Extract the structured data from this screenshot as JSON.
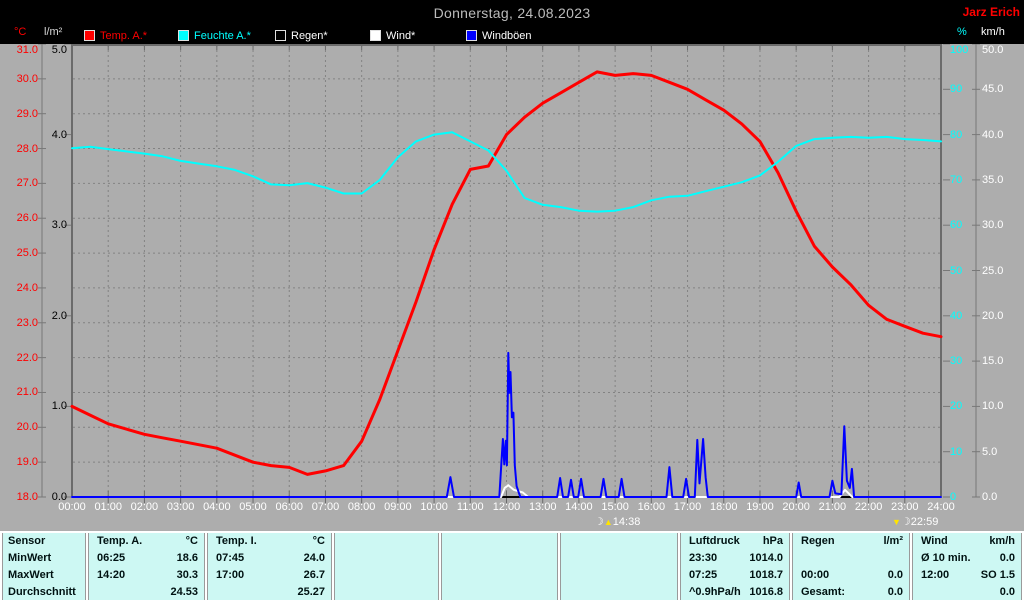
{
  "header": {
    "title": "Donnerstag, 24.08.2023",
    "station": "Jarz Erich"
  },
  "legend": [
    {
      "label": "Temp. A.*",
      "swatch": "#ff0000",
      "text_color": "#ff0000"
    },
    {
      "label": "Feuchte A.*",
      "swatch": "#00ffff",
      "text_color": "#00ffff"
    },
    {
      "label": "Regen*",
      "swatch": "#000000",
      "text_color": "#ffffff"
    },
    {
      "label": "Wind*",
      "swatch": "#ffffff",
      "text_color": "#ffffff"
    },
    {
      "label": "Windböen",
      "swatch": "#0000ff",
      "text_color": "#ffffff"
    }
  ],
  "markers": [
    {
      "time": "14:38",
      "hour": 14.63,
      "icon": "moonrise",
      "arrow": "up"
    },
    {
      "time": "22:59",
      "hour": 22.98,
      "icon": "moonset",
      "arrow": "down"
    }
  ],
  "chart_data": {
    "type": "line",
    "title": "Donnerstag, 24.08.2023",
    "x_hours_step": 0.5,
    "x_tick_labels": [
      "00:00",
      "01:00",
      "02:00",
      "03:00",
      "04:00",
      "05:00",
      "06:00",
      "07:00",
      "08:00",
      "09:00",
      "10:00",
      "11:00",
      "12:00",
      "13:00",
      "14:00",
      "15:00",
      "16:00",
      "17:00",
      "18:00",
      "19:00",
      "20:00",
      "21:00",
      "22:00",
      "23:00",
      "24:00"
    ],
    "axes": {
      "temp": {
        "unit": "°C",
        "color": "#ff0000",
        "min": 18,
        "max": 31,
        "ticks": [
          "31.0",
          "30.0",
          "29.0",
          "28.0",
          "27.0",
          "26.0",
          "25.0",
          "24.0",
          "23.0",
          "22.0",
          "21.0",
          "20.0",
          "19.0",
          "18.0"
        ],
        "unit_color": "#ff0000"
      },
      "rain": {
        "unit": "l/m²",
        "color": "#000000",
        "min": 0,
        "max": 5,
        "ticks": [
          "5.0",
          "4.0",
          "3.0",
          "2.0",
          "1.0",
          "0.0"
        ],
        "unit_color": "#d8d8d8"
      },
      "hum": {
        "unit": "%",
        "color": "#00ffff",
        "min": 0,
        "max": 100,
        "ticks": [
          "100",
          "90",
          "80",
          "70",
          "60",
          "50",
          "40",
          "30",
          "20",
          "10",
          "0"
        ],
        "unit_color": "#00ffff"
      },
      "wind": {
        "unit": "km/h",
        "color": "#ffffff",
        "min": 0,
        "max": 50,
        "ticks": [
          "50.0",
          "45.0",
          "40.0",
          "35.0",
          "30.0",
          "25.0",
          "20.0",
          "15.0",
          "10.0",
          "5.0",
          "0.0"
        ],
        "unit_color": "#ffffff"
      }
    },
    "series": [
      {
        "name": "Temp. A.",
        "axis": "temp",
        "color": "#ff0000",
        "width": 3,
        "values": [
          20.6,
          20.35,
          20.1,
          19.95,
          19.8,
          19.7,
          19.6,
          19.5,
          19.4,
          19.2,
          19.0,
          18.9,
          18.85,
          18.65,
          18.75,
          18.9,
          19.6,
          20.8,
          22.2,
          23.6,
          25.1,
          26.4,
          27.4,
          27.5,
          28.4,
          28.9,
          29.3,
          29.6,
          29.9,
          30.2,
          30.1,
          30.15,
          30.1,
          29.9,
          29.7,
          29.4,
          29.1,
          28.7,
          28.2,
          27.3,
          26.2,
          25.2,
          24.6,
          24.1,
          23.5,
          23.1,
          22.9,
          22.7,
          22.6
        ]
      },
      {
        "name": "Feuchte A.",
        "axis": "hum",
        "color": "#00ffff",
        "width": 2,
        "values": [
          77,
          77.3,
          76.8,
          76.3,
          75.8,
          75.2,
          74.2,
          73.6,
          73,
          72.2,
          70.8,
          69,
          68.8,
          69.3,
          68.3,
          67,
          67,
          70,
          75,
          78.5,
          80,
          80.5,
          78.5,
          76.5,
          72,
          66,
          64.5,
          64,
          63.2,
          63,
          63.2,
          64,
          65.5,
          66.3,
          66.5,
          67.5,
          68.5,
          69.5,
          71,
          74,
          77.5,
          79,
          79.3,
          79.5,
          79.3,
          79.5,
          79,
          78.8,
          78.5
        ]
      },
      {
        "name": "Regen",
        "axis": "rain",
        "color": "#000000",
        "width": 2,
        "flat": 0
      },
      {
        "name": "Wind",
        "axis": "wind",
        "color": "#ffffff",
        "width": 2,
        "pairs": [
          [
            0,
            0
          ],
          [
            11.85,
            0
          ],
          [
            11.95,
            1.0
          ],
          [
            12.05,
            1.3
          ],
          [
            12.2,
            0.8
          ],
          [
            12.45,
            0.5
          ],
          [
            12.6,
            0
          ],
          [
            21.2,
            0
          ],
          [
            21.35,
            0.8
          ],
          [
            21.55,
            0
          ],
          [
            24,
            0
          ]
        ]
      },
      {
        "name": "Windböen",
        "axis": "wind",
        "color": "#0000ff",
        "width": 2,
        "pairs": [
          [
            0,
            0
          ],
          [
            10.35,
            0
          ],
          [
            10.45,
            2.2
          ],
          [
            10.55,
            0
          ],
          [
            11.8,
            0
          ],
          [
            11.87,
            4.5
          ],
          [
            11.9,
            6.4
          ],
          [
            11.94,
            3.6
          ],
          [
            11.98,
            6.2
          ],
          [
            12.01,
            3.5
          ],
          [
            12.05,
            15.9
          ],
          [
            12.08,
            11.5
          ],
          [
            12.11,
            13.8
          ],
          [
            12.15,
            8.8
          ],
          [
            12.19,
            9.3
          ],
          [
            12.23,
            3.5
          ],
          [
            12.28,
            1.2
          ],
          [
            12.38,
            0
          ],
          [
            13.4,
            0
          ],
          [
            13.48,
            2.1
          ],
          [
            13.56,
            0
          ],
          [
            13.7,
            0
          ],
          [
            13.78,
            1.9
          ],
          [
            13.86,
            0
          ],
          [
            13.98,
            0
          ],
          [
            14.06,
            2.0
          ],
          [
            14.14,
            0
          ],
          [
            14.6,
            0
          ],
          [
            14.68,
            2.0
          ],
          [
            14.76,
            0
          ],
          [
            15.1,
            0
          ],
          [
            15.18,
            2.0
          ],
          [
            15.26,
            0
          ],
          [
            16.42,
            0
          ],
          [
            16.5,
            3.3
          ],
          [
            16.58,
            0
          ],
          [
            16.88,
            0
          ],
          [
            16.96,
            2.0
          ],
          [
            17.04,
            0
          ],
          [
            17.2,
            0
          ],
          [
            17.27,
            6.3
          ],
          [
            17.33,
            1.5
          ],
          [
            17.43,
            6.4
          ],
          [
            17.5,
            2.2
          ],
          [
            17.56,
            0
          ],
          [
            20.0,
            0
          ],
          [
            20.07,
            1.6
          ],
          [
            20.14,
            0
          ],
          [
            20.92,
            0
          ],
          [
            21.0,
            1.8
          ],
          [
            21.08,
            0.4
          ],
          [
            21.25,
            0.3
          ],
          [
            21.33,
            7.8
          ],
          [
            21.4,
            1.8
          ],
          [
            21.48,
            1.0
          ],
          [
            21.54,
            3.1
          ],
          [
            21.6,
            0
          ],
          [
            24,
            0
          ]
        ]
      }
    ],
    "grid": {
      "vertical_every_hour": true,
      "horizontal_every_degC": true,
      "color": "#828282"
    }
  },
  "table": {
    "groups": [
      {
        "single": [
          "Sensor",
          "MinWert",
          "MaxWert",
          "Durchschnitt"
        ]
      },
      {
        "header": [
          "Temp. A.",
          "°C"
        ],
        "rows": [
          [
            "06:25",
            "18.6"
          ],
          [
            "14:20",
            "30.3"
          ],
          [
            "",
            "24.53"
          ]
        ]
      },
      {
        "header": [
          "Temp. I.",
          "°C"
        ],
        "rows": [
          [
            "07:45",
            "24.0"
          ],
          [
            "17:00",
            "26.7"
          ],
          [
            "",
            "25.27"
          ]
        ]
      },
      {
        "header": [
          "",
          ""
        ],
        "rows": [
          [
            "",
            ""
          ],
          [
            "",
            ""
          ],
          [
            "",
            ""
          ]
        ]
      },
      {
        "header": [
          "",
          ""
        ],
        "rows": [
          [
            "",
            ""
          ],
          [
            "",
            ""
          ],
          [
            "",
            ""
          ]
        ]
      },
      {
        "header": [
          "",
          ""
        ],
        "rows": [
          [
            "",
            ""
          ],
          [
            "",
            ""
          ],
          [
            "",
            ""
          ]
        ]
      },
      {
        "header": [
          "Luftdruck",
          "hPa"
        ],
        "rows": [
          [
            "23:30",
            "1014.0"
          ],
          [
            "07:25",
            "1018.7"
          ],
          [
            "^0.9hPa/h",
            "1016.8"
          ]
        ]
      },
      {
        "header": [
          "Regen",
          "l/m²"
        ],
        "rows": [
          [
            "",
            ""
          ],
          [
            "00:00",
            "0.0"
          ],
          [
            "Gesamt:",
            "0.0"
          ]
        ]
      },
      {
        "header": [
          "Wind",
          "km/h"
        ],
        "rows": [
          [
            "Ø 10 min.",
            "0.0"
          ],
          [
            "12:00",
            "SO 1.5"
          ],
          [
            "",
            "0.0"
          ]
        ]
      }
    ]
  }
}
